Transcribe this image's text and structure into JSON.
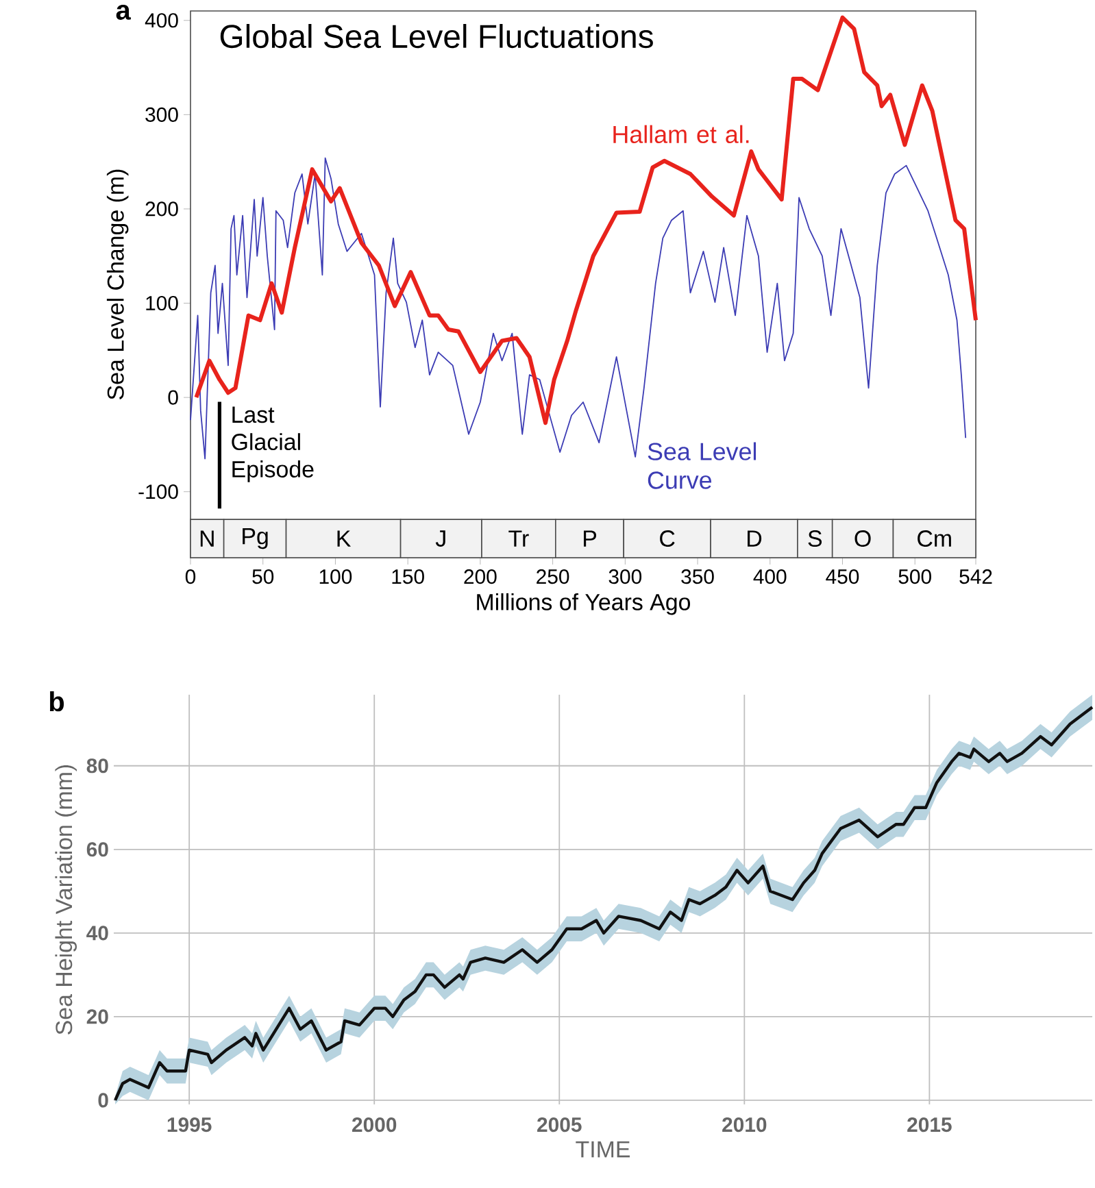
{
  "chart_data": [
    {
      "type": "line",
      "title": "Global Sea Level Fluctuations",
      "xlabel": "Millions of Years Ago",
      "ylabel": "Sea Level Change (m)",
      "xlim": [
        0,
        542
      ],
      "ylim": [
        -170,
        410
      ],
      "xticks": [
        0,
        50,
        100,
        150,
        200,
        250,
        300,
        350,
        400,
        450,
        500,
        542
      ],
      "yticks": [
        -100,
        0,
        100,
        200,
        300,
        400
      ],
      "annotations": [
        "a",
        "Last Glacial Episode"
      ],
      "bands": [
        {
          "axis": "x",
          "from": 0,
          "to": 23,
          "label": "N",
          "color": "#f2f2f2"
        },
        {
          "axis": "x",
          "from": 23,
          "to": 66,
          "label": "Pg",
          "color": "#f2f2f2"
        },
        {
          "axis": "x",
          "from": 66,
          "to": 145,
          "label": "K",
          "color": "#f2f2f2"
        },
        {
          "axis": "x",
          "from": 145,
          "to": 201,
          "label": "J",
          "color": "#f2f2f2"
        },
        {
          "axis": "x",
          "from": 201,
          "to": 252,
          "label": "Tr",
          "color": "#f2f2f2"
        },
        {
          "axis": "x",
          "from": 252,
          "to": 299,
          "label": "P",
          "color": "#f2f2f2"
        },
        {
          "axis": "x",
          "from": 299,
          "to": 359,
          "label": "C",
          "color": "#f2f2f2"
        },
        {
          "axis": "x",
          "from": 359,
          "to": 419,
          "label": "D",
          "color": "#f2f2f2"
        },
        {
          "axis": "x",
          "from": 419,
          "to": 443,
          "label": "S",
          "color": "#f2f2f2"
        },
        {
          "axis": "x",
          "from": 443,
          "to": 485,
          "label": "O",
          "color": "#f2f2f2"
        },
        {
          "axis": "x",
          "from": 485,
          "to": 542,
          "label": "Cm",
          "color": "#f2f2f2"
        }
      ],
      "series": [
        {
          "name": "Sea Level Curve",
          "color": "#3c3cb4",
          "x": [
            0,
            5,
            7,
            10,
            14,
            17,
            19,
            22,
            26,
            28,
            30,
            32,
            36,
            39,
            44,
            46,
            50,
            53,
            58,
            59,
            64,
            67,
            72,
            77,
            81,
            86,
            91,
            93,
            97,
            102,
            108,
            118,
            127,
            131,
            135,
            140,
            143,
            149,
            155,
            160,
            165,
            171,
            181,
            192,
            200,
            209,
            215,
            222,
            229,
            234,
            241,
            247,
            255,
            263,
            271,
            282,
            294,
            307,
            313,
            321,
            326,
            332,
            340,
            345,
            354,
            362,
            368,
            376,
            384,
            392,
            398,
            405,
            410,
            416,
            420,
            427,
            436,
            442,
            449,
            456,
            462,
            468,
            474,
            480,
            486,
            494,
            500,
            509,
            515,
            523,
            529,
            532,
            535
          ],
          "values": [
            -24,
            87,
            -14,
            -65,
            111,
            140,
            68,
            121,
            34,
            179,
            193,
            130,
            193,
            106,
            210,
            150,
            212,
            150,
            72,
            198,
            188,
            159,
            217,
            237,
            184,
            237,
            130,
            254,
            232,
            184,
            155,
            174,
            130,
            -10,
            111,
            169,
            121,
            101,
            53,
            82,
            24,
            48,
            34,
            -39,
            -5,
            68,
            39,
            68,
            -39,
            24,
            19,
            -14,
            -58,
            -19,
            -5,
            -48,
            43,
            -63,
            10,
            121,
            169,
            188,
            198,
            111,
            155,
            101,
            159,
            87,
            193,
            150,
            48,
            121,
            39,
            68,
            212,
            179,
            150,
            87,
            179,
            140,
            106,
            10,
            140,
            217,
            237,
            246,
            227,
            198,
            169,
            130,
            82,
            24,
            -43
          ]
        },
        {
          "name": "Hallam et al.",
          "color": "#e8231c",
          "x": [
            4,
            13,
            20,
            26,
            31,
            40,
            48,
            56,
            63,
            72,
            84,
            97,
            103,
            118,
            130,
            141,
            152,
            165,
            171,
            178,
            185,
            200,
            215,
            225,
            234,
            245,
            251,
            260,
            266,
            278,
            294,
            310,
            319,
            327,
            345,
            360,
            375,
            387,
            392,
            408,
            416,
            422,
            433,
            450,
            458,
            465,
            474,
            477,
            483,
            493,
            505,
            512,
            528,
            534,
            542
          ],
          "values": [
            0,
            39,
            19,
            5,
            10,
            87,
            82,
            121,
            90,
            159,
            242,
            208,
            222,
            164,
            140,
            97,
            133,
            87,
            87,
            72,
            70,
            27,
            60,
            63,
            43,
            -27,
            19,
            60,
            92,
            150,
            196,
            197,
            244,
            251,
            237,
            213,
            193,
            261,
            242,
            210,
            338,
            338,
            326,
            403,
            391,
            345,
            331,
            309,
            321,
            268,
            331,
            304,
            188,
            179,
            82
          ]
        }
      ]
    },
    {
      "type": "line",
      "xlabel": "TIME",
      "ylabel": "Sea Height Variation (mm)",
      "grid": true,
      "xlim": [
        1992.96,
        2019.4
      ],
      "ylim": [
        -1,
        97
      ],
      "xticks": [
        1995,
        2000,
        2005,
        2010,
        2015
      ],
      "yticks": [
        0,
        20,
        40,
        60,
        80
      ],
      "annotations": [
        "b"
      ],
      "series": [
        {
          "color": "#111111",
          "x": [
            1993.0,
            1993.2,
            1993.4,
            1993.9,
            1994.1,
            1994.2,
            1994.4,
            1994.9,
            1995.0,
            1995.5,
            1995.6,
            1996.0,
            1996.5,
            1996.7,
            1996.8,
            1997.0,
            1997.7,
            1998.0,
            1998.3,
            1998.7,
            1999.1,
            1999.2,
            1999.6,
            2000.0,
            2000.3,
            2000.5,
            2000.8,
            2001.1,
            2001.4,
            2001.6,
            2001.9,
            2002.3,
            2002.4,
            2002.6,
            2003.0,
            2003.5,
            2004.0,
            2004.4,
            2004.8,
            2005.2,
            2005.6,
            2006.0,
            2006.2,
            2006.6,
            2007.2,
            2007.7,
            2008.0,
            2008.3,
            2008.5,
            2008.8,
            2009.2,
            2009.5,
            2009.8,
            2010.1,
            2010.5,
            2010.7,
            2011.3,
            2011.6,
            2011.9,
            2012.1,
            2012.6,
            2013.1,
            2013.6,
            2014.1,
            2014.3,
            2014.6,
            2014.9,
            2015.2,
            2015.6,
            2015.8,
            2016.1,
            2016.2,
            2016.6,
            2016.9,
            2017.1,
            2017.5,
            2018.0,
            2018.3,
            2018.8,
            2019.4
          ],
          "values": [
            0,
            4,
            5,
            3,
            7,
            9,
            7,
            7,
            12,
            11,
            9,
            12,
            15,
            13,
            16,
            12,
            22,
            17,
            19,
            12,
            14,
            19,
            18,
            22,
            22,
            20,
            24,
            26,
            30,
            30,
            27,
            30,
            29,
            33,
            34,
            33,
            36,
            33,
            36,
            41,
            41,
            43,
            40,
            44,
            43,
            41,
            45,
            43,
            48,
            47,
            49,
            51,
            55,
            52,
            56,
            50,
            48,
            52,
            55,
            59,
            65,
            67,
            63,
            66,
            66,
            70,
            70,
            76,
            81,
            83,
            82,
            84,
            81,
            83,
            81,
            83,
            87,
            85,
            90,
            94
          ],
          "lower": [
            -1,
            1,
            2,
            0,
            4,
            6,
            4,
            4,
            9,
            8,
            6,
            9,
            12,
            10,
            13,
            9,
            19,
            14,
            16,
            9,
            11,
            16,
            15,
            19,
            19,
            17,
            21,
            23,
            27,
            27,
            24,
            27,
            26,
            30,
            31,
            30,
            33,
            30,
            33,
            38,
            38,
            40,
            37,
            41,
            40,
            38,
            42,
            40,
            45,
            44,
            46,
            48,
            52,
            49,
            53,
            47,
            45,
            49,
            52,
            56,
            62,
            64,
            60,
            63,
            63,
            67,
            67,
            73,
            78,
            80,
            79,
            81,
            78,
            80,
            78,
            80,
            84,
            82,
            87,
            91
          ],
          "upper": [
            1,
            7,
            8,
            6,
            10,
            12,
            10,
            10,
            15,
            14,
            12,
            15,
            18,
            16,
            19,
            15,
            25,
            20,
            22,
            15,
            17,
            22,
            21,
            25,
            25,
            23,
            27,
            29,
            33,
            33,
            30,
            33,
            32,
            36,
            37,
            36,
            39,
            36,
            39,
            44,
            44,
            46,
            43,
            47,
            46,
            44,
            48,
            46,
            51,
            50,
            52,
            54,
            58,
            55,
            59,
            53,
            51,
            55,
            58,
            62,
            68,
            70,
            66,
            69,
            69,
            73,
            73,
            79,
            84,
            86,
            85,
            87,
            84,
            86,
            84,
            86,
            90,
            88,
            93,
            97
          ]
        }
      ]
    }
  ]
}
